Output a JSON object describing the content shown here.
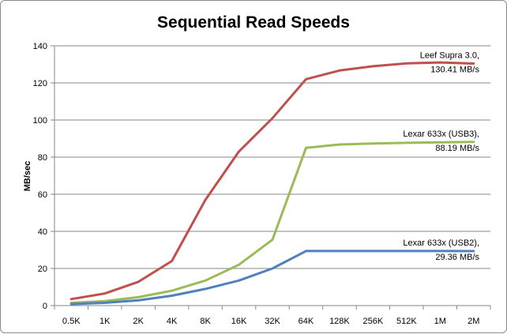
{
  "chart_data": {
    "type": "line",
    "title": "Sequential Read Speeds",
    "xlabel": "",
    "ylabel": "MB/sec",
    "ylim": [
      0,
      140
    ],
    "yticks": [
      0,
      20,
      40,
      60,
      80,
      100,
      120,
      140
    ],
    "grid": true,
    "legend": "none",
    "categories": [
      "0.5K",
      "1K",
      "2K",
      "4K",
      "8K",
      "16K",
      "32K",
      "64K",
      "128K",
      "256K",
      "512K",
      "1M",
      "2M"
    ],
    "series": [
      {
        "color": "#c0504d",
        "values": [
          3.5,
          6.5,
          12.8,
          24,
          57,
          83,
          101,
          122,
          126.7,
          129,
          130.5,
          131,
          130.41
        ]
      },
      {
        "color": "#9bbb59",
        "values": [
          1.5,
          2.4,
          4.5,
          8,
          13.5,
          22,
          35.5,
          85,
          86.8,
          87.3,
          87.7,
          88,
          88.19
        ]
      },
      {
        "color": "#4f81bd",
        "values": [
          0.8,
          1.5,
          2.8,
          5.3,
          9,
          13.5,
          20,
          29.4,
          29.4,
          29.4,
          29.4,
          29.4,
          29.36
        ]
      }
    ],
    "annotations": [
      {
        "line1": "Leef Supra 3.0,",
        "line2": "130.41 MB/s",
        "series_index": 0
      },
      {
        "line1": "Lexar 633x (USB3),",
        "line2": "88.19 MB/s",
        "series_index": 1
      },
      {
        "line1": "Lexar 633x (USB2),",
        "line2": "29.36 MB/s",
        "series_index": 2
      }
    ]
  }
}
